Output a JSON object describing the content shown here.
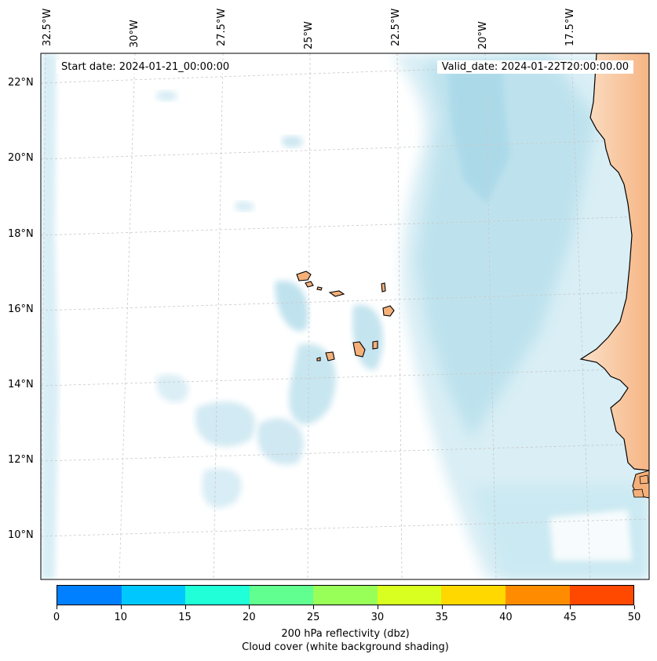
{
  "header": {
    "start_date": "Start date: 2024-01-21_00:00:00",
    "valid_date": "Valid_date: 2024-01-22T20:00:00.00"
  },
  "longitude_labels": [
    "32.5°W",
    "30°W",
    "27.5°W",
    "25°W",
    "22.5°W",
    "20°W",
    "17.5°W"
  ],
  "latitude_labels": [
    "22°N",
    "20°N",
    "18°N",
    "16°N",
    "14°N",
    "12°N",
    "10°N"
  ],
  "colorbar": {
    "ticks": [
      "0",
      "10",
      "15",
      "20",
      "25",
      "30",
      "35",
      "40",
      "45",
      "50"
    ],
    "colors": [
      "#0080ff",
      "#00c8ff",
      "#20ffd8",
      "#60ff90",
      "#98ff58",
      "#d8ff20",
      "#ffd800",
      "#ff8c00",
      "#ff4800"
    ],
    "label_line1": "200 hPa reflectivity (dbz)",
    "label_line2": "Cloud cover (white background shading)"
  },
  "colors": {
    "cloud": "#a8d8e8",
    "land": "#f5b07a",
    "coast": "#000000"
  }
}
